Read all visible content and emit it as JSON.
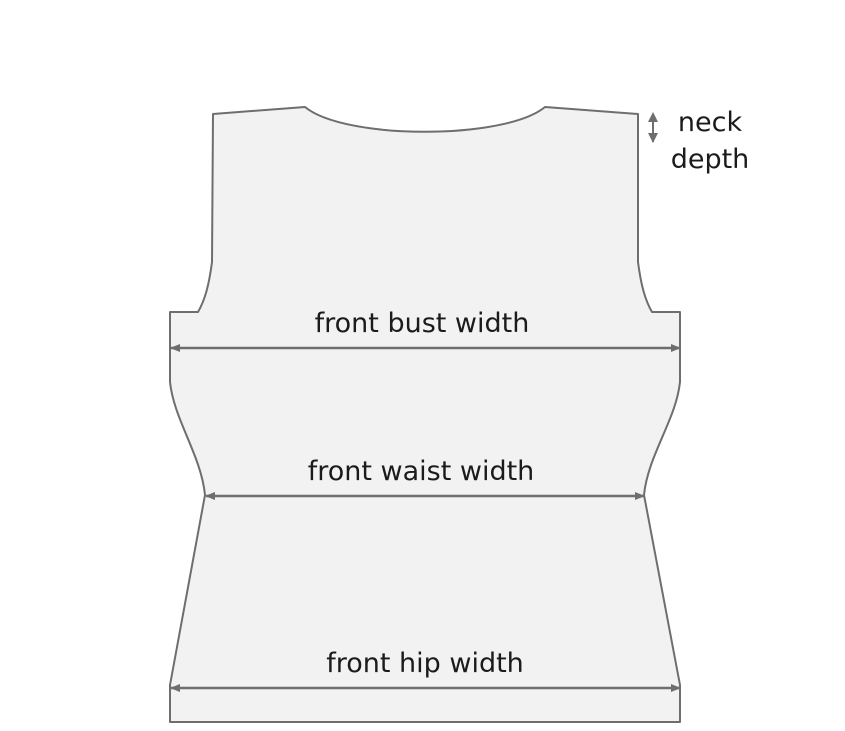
{
  "diagram": {
    "title": "",
    "labels": {
      "neck_depth_line1": "neck",
      "neck_depth_line2": "depth",
      "bust": "front bust width",
      "waist": "front waist width",
      "hip": "front hip width"
    },
    "colors": {
      "fill": "#f2f2f2",
      "outline": "#6e6e6e",
      "arrow": "#6e6e6e",
      "text": "#1b1b1b"
    }
  }
}
